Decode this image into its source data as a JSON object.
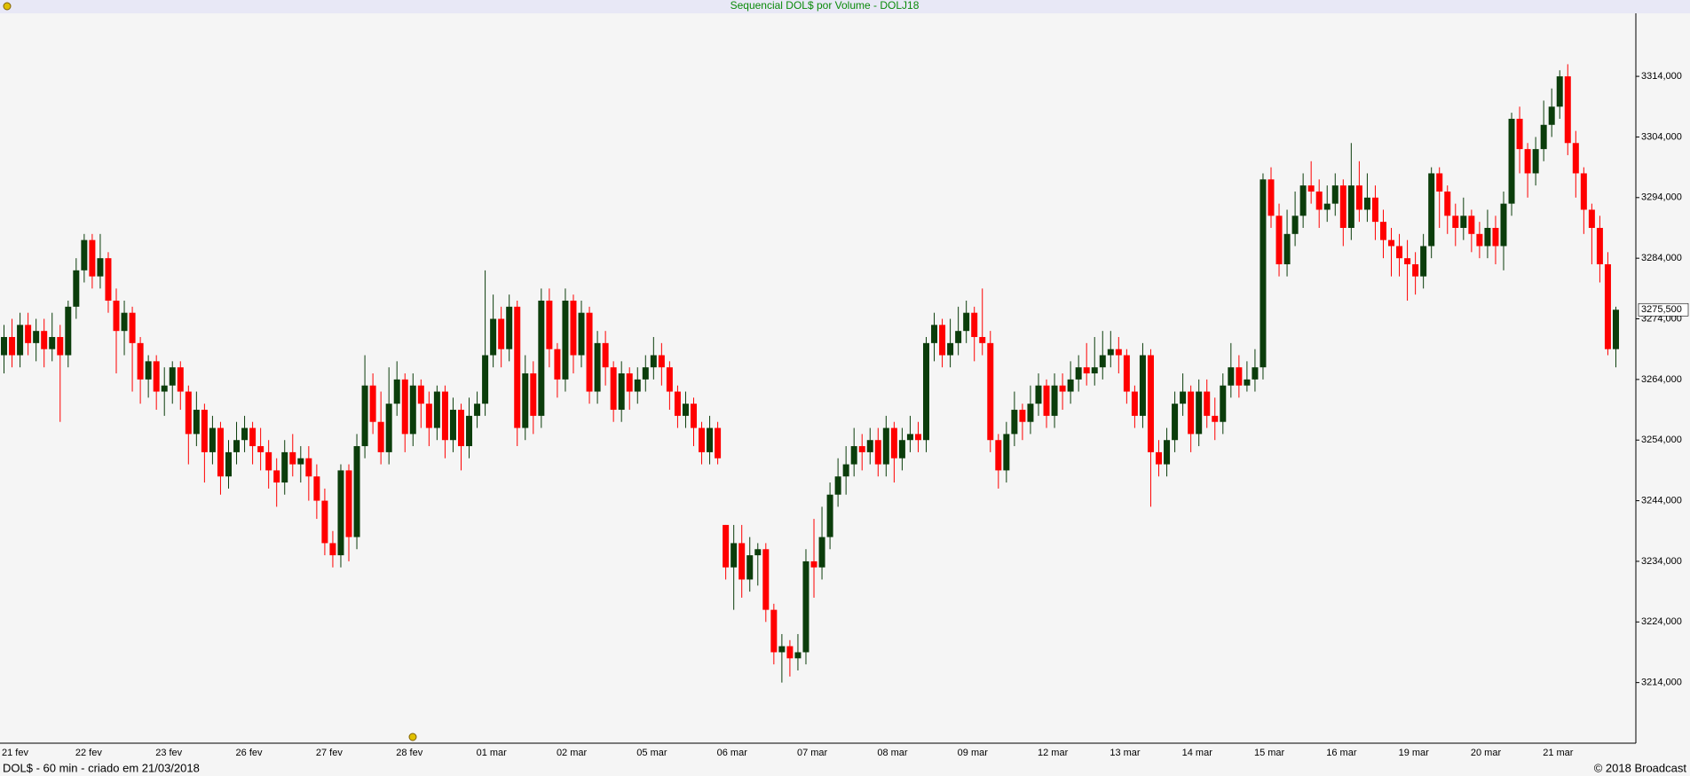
{
  "chart_data": {
    "type": "candlestick",
    "title": "Sequencial DOL$ por Volume - DOLJ18",
    "up_color": "#0b3d0b",
    "down_color": "#ff0000",
    "ylim": [
      3204,
      3324.4
    ],
    "yticks": [
      {
        "value": 3214,
        "label": "3214,000"
      },
      {
        "value": 3224,
        "label": "3224,000"
      },
      {
        "value": 3234,
        "label": "3234,000"
      },
      {
        "value": 3244,
        "label": "3244,000"
      },
      {
        "value": 3254,
        "label": "3254,000"
      },
      {
        "value": 3264,
        "label": "3264,000"
      },
      {
        "value": 3274,
        "label": "3274,000"
      },
      {
        "value": 3284,
        "label": "3284,000"
      },
      {
        "value": 3294,
        "label": "3294,000"
      },
      {
        "value": 3304,
        "label": "3304,000"
      },
      {
        "value": 3314,
        "label": "3314,000"
      }
    ],
    "price_marker": {
      "value": 3275.5,
      "label": "3275,500"
    },
    "categories": [
      "21 fev",
      null,
      null,
      null,
      null,
      null,
      null,
      null,
      null,
      null,
      "22 fev",
      null,
      null,
      null,
      null,
      null,
      null,
      null,
      null,
      null,
      "23 fev",
      null,
      null,
      null,
      null,
      null,
      null,
      null,
      null,
      null,
      "26 fev",
      null,
      null,
      null,
      null,
      null,
      null,
      null,
      null,
      null,
      "27 fev",
      null,
      null,
      null,
      null,
      null,
      null,
      null,
      null,
      null,
      "28 fev",
      null,
      null,
      null,
      null,
      null,
      null,
      null,
      null,
      null,
      "01 mar",
      null,
      null,
      null,
      null,
      null,
      null,
      null,
      null,
      null,
      "02 mar",
      null,
      null,
      null,
      null,
      null,
      null,
      null,
      null,
      null,
      "05 mar",
      null,
      null,
      null,
      null,
      null,
      null,
      null,
      null,
      null,
      "06 mar",
      null,
      null,
      null,
      null,
      null,
      null,
      null,
      null,
      null,
      "07 mar",
      null,
      null,
      null,
      null,
      null,
      null,
      null,
      null,
      null,
      "08 mar",
      null,
      null,
      null,
      null,
      null,
      null,
      null,
      null,
      null,
      "09 mar",
      null,
      null,
      null,
      null,
      null,
      null,
      null,
      null,
      null,
      "12 mar",
      null,
      null,
      null,
      null,
      null,
      null,
      null,
      null,
      "13 mar",
      null,
      null,
      null,
      null,
      null,
      null,
      null,
      null,
      "14 mar",
      null,
      null,
      null,
      null,
      null,
      null,
      null,
      null,
      "15 mar",
      null,
      null,
      null,
      null,
      null,
      null,
      null,
      null,
      "16 mar",
      null,
      null,
      null,
      null,
      null,
      null,
      null,
      null,
      "19 mar",
      null,
      null,
      null,
      null,
      null,
      null,
      null,
      null,
      "20 mar",
      null,
      null,
      null,
      null,
      null,
      null,
      null,
      null,
      "21 mar",
      null,
      null,
      null,
      null,
      null,
      null,
      null,
      null
    ],
    "ohlc": [
      [
        3268,
        3273,
        3265,
        3271
      ],
      [
        3271,
        3274,
        3266,
        3268
      ],
      [
        3268,
        3275,
        3266,
        3273
      ],
      [
        3273,
        3275,
        3268,
        3270
      ],
      [
        3270,
        3274,
        3267,
        3272
      ],
      [
        3272,
        3274,
        3266,
        3269
      ],
      [
        3269,
        3275,
        3267,
        3271
      ],
      [
        3271,
        3273,
        3257,
        3268
      ],
      [
        3268,
        3277,
        3266,
        3276
      ],
      [
        3276,
        3284,
        3274,
        3282
      ],
      [
        3282,
        3288,
        3280,
        3287
      ],
      [
        3287,
        3288,
        3279,
        3281
      ],
      [
        3281,
        3288,
        3279,
        3284
      ],
      [
        3284,
        3285,
        3275,
        3277
      ],
      [
        3277,
        3279,
        3265,
        3272
      ],
      [
        3272,
        3277,
        3268,
        3275
      ],
      [
        3275,
        3276,
        3262,
        3270
      ],
      [
        3270,
        3271,
        3260,
        3264
      ],
      [
        3264,
        3268,
        3261,
        3267
      ],
      [
        3267,
        3268,
        3259,
        3262
      ],
      [
        3262,
        3266,
        3258,
        3263
      ],
      [
        3263,
        3267,
        3260,
        3266
      ],
      [
        3266,
        3267,
        3259,
        3262
      ],
      [
        3262,
        3263,
        3250,
        3255
      ],
      [
        3255,
        3262,
        3253,
        3259
      ],
      [
        3259,
        3260,
        3247,
        3252
      ],
      [
        3252,
        3258,
        3250,
        3256
      ],
      [
        3256,
        3257,
        3245,
        3248
      ],
      [
        3248,
        3254,
        3246,
        3252
      ],
      [
        3252,
        3257,
        3250,
        3254
      ],
      [
        3254,
        3258,
        3252,
        3256
      ],
      [
        3256,
        3257,
        3250,
        3253
      ],
      [
        3253,
        3256,
        3249,
        3252
      ],
      [
        3252,
        3254,
        3246,
        3249
      ],
      [
        3249,
        3251,
        3243,
        3247
      ],
      [
        3247,
        3254,
        3245,
        3252
      ],
      [
        3252,
        3255,
        3248,
        3250
      ],
      [
        3250,
        3253,
        3247,
        3251
      ],
      [
        3251,
        3253,
        3244,
        3248
      ],
      [
        3248,
        3250,
        3241,
        3244
      ],
      [
        3244,
        3246,
        3235,
        3237
      ],
      [
        3237,
        3239,
        3233,
        3235
      ],
      [
        3235,
        3250,
        3233,
        3249
      ],
      [
        3249,
        3250,
        3234,
        3238
      ],
      [
        3238,
        3255,
        3236,
        3253
      ],
      [
        3253,
        3268,
        3251,
        3263
      ],
      [
        3263,
        3265,
        3255,
        3257
      ],
      [
        3257,
        3262,
        3250,
        3252
      ],
      [
        3252,
        3266,
        3250,
        3260
      ],
      [
        3260,
        3267,
        3258,
        3264
      ],
      [
        3264,
        3265,
        3252,
        3255
      ],
      [
        3255,
        3265,
        3253,
        3263
      ],
      [
        3263,
        3264,
        3256,
        3260
      ],
      [
        3260,
        3262,
        3253,
        3256
      ],
      [
        3256,
        3263,
        3254,
        3262
      ],
      [
        3262,
        3263,
        3251,
        3254
      ],
      [
        3254,
        3261,
        3252,
        3259
      ],
      [
        3259,
        3260,
        3249,
        3253
      ],
      [
        3253,
        3261,
        3251,
        3258
      ],
      [
        3258,
        3262,
        3256,
        3260
      ],
      [
        3260,
        3282,
        3258,
        3268
      ],
      [
        3268,
        3278,
        3266,
        3274
      ],
      [
        3274,
        3276,
        3266,
        3269
      ],
      [
        3269,
        3278,
        3267,
        3276
      ],
      [
        3276,
        3277,
        3253,
        3256
      ],
      [
        3256,
        3268,
        3254,
        3265
      ],
      [
        3265,
        3267,
        3255,
        3258
      ],
      [
        3258,
        3279,
        3256,
        3277
      ],
      [
        3277,
        3279,
        3266,
        3269
      ],
      [
        3269,
        3270,
        3261,
        3264
      ],
      [
        3264,
        3279,
        3262,
        3277
      ],
      [
        3277,
        3278,
        3265,
        3268
      ],
      [
        3268,
        3277,
        3266,
        3275
      ],
      [
        3275,
        3276,
        3260,
        3262
      ],
      [
        3262,
        3272,
        3260,
        3270
      ],
      [
        3270,
        3272,
        3263,
        3266
      ],
      [
        3266,
        3267,
        3257,
        3259
      ],
      [
        3259,
        3267,
        3257,
        3265
      ],
      [
        3265,
        3266,
        3259,
        3262
      ],
      [
        3262,
        3266,
        3260,
        3264
      ],
      [
        3264,
        3268,
        3262,
        3266
      ],
      [
        3266,
        3271,
        3264,
        3268
      ],
      [
        3268,
        3270,
        3263,
        3266
      ],
      [
        3266,
        3267,
        3259,
        3262
      ],
      [
        3262,
        3263,
        3256,
        3258
      ],
      [
        3258,
        3262,
        3256,
        3260
      ],
      [
        3260,
        3261,
        3253,
        3256
      ],
      [
        3256,
        3257,
        3250,
        3252
      ],
      [
        3252,
        3258,
        3250,
        3256
      ],
      [
        3256,
        3257,
        3250,
        3251
      ],
      [
        3240,
        3240,
        3231,
        3233
      ],
      [
        3233,
        3240,
        3226,
        3237
      ],
      [
        3237,
        3240,
        3228,
        3231
      ],
      [
        3231,
        3238,
        3229,
        3235
      ],
      [
        3235,
        3237,
        3230,
        3236
      ],
      [
        3236,
        3237,
        3224,
        3226
      ],
      [
        3226,
        3227,
        3217,
        3219
      ],
      [
        3219,
        3222,
        3214,
        3220
      ],
      [
        3220,
        3221,
        3215,
        3218
      ],
      [
        3218,
        3222,
        3216,
        3219
      ],
      [
        3219,
        3236,
        3217,
        3234
      ],
      [
        3234,
        3241,
        3228,
        3233
      ],
      [
        3233,
        3243,
        3231,
        3238
      ],
      [
        3238,
        3247,
        3236,
        3245
      ],
      [
        3245,
        3251,
        3243,
        3248
      ],
      [
        3248,
        3253,
        3245,
        3250
      ],
      [
        3250,
        3256,
        3248,
        3253
      ],
      [
        3253,
        3255,
        3249,
        3252
      ],
      [
        3252,
        3256,
        3250,
        3254
      ],
      [
        3254,
        3256,
        3248,
        3250
      ],
      [
        3250,
        3258,
        3248,
        3256
      ],
      [
        3256,
        3257,
        3247,
        3251
      ],
      [
        3251,
        3256,
        3249,
        3254
      ],
      [
        3254,
        3258,
        3252,
        3255
      ],
      [
        3255,
        3257,
        3252,
        3254
      ],
      [
        3254,
        3271,
        3252,
        3270
      ],
      [
        3270,
        3275,
        3267,
        3273
      ],
      [
        3273,
        3274,
        3266,
        3268
      ],
      [
        3268,
        3274,
        3266,
        3270
      ],
      [
        3270,
        3276,
        3268,
        3272
      ],
      [
        3272,
        3277,
        3270,
        3275
      ],
      [
        3275,
        3276,
        3267,
        3271
      ],
      [
        3271,
        3279,
        3268,
        3270
      ],
      [
        3270,
        3272,
        3252,
        3254
      ],
      [
        3254,
        3255,
        3246,
        3249
      ],
      [
        3249,
        3257,
        3247,
        3255
      ],
      [
        3255,
        3262,
        3253,
        3259
      ],
      [
        3259,
        3260,
        3254,
        3257
      ],
      [
        3257,
        3263,
        3255,
        3260
      ],
      [
        3260,
        3265,
        3258,
        3263
      ],
      [
        3263,
        3264,
        3256,
        3258
      ],
      [
        3258,
        3265,
        3256,
        3263
      ],
      [
        3263,
        3265,
        3259,
        3262
      ],
      [
        3262,
        3267,
        3260,
        3264
      ],
      [
        3264,
        3268,
        3262,
        3266
      ],
      [
        3266,
        3270,
        3263,
        3265
      ],
      [
        3265,
        3271,
        3263,
        3266
      ],
      [
        3266,
        3272,
        3264,
        3268
      ],
      [
        3268,
        3272,
        3266,
        3269
      ],
      [
        3269,
        3271,
        3265,
        3268
      ],
      [
        3268,
        3269,
        3260,
        3262
      ],
      [
        3262,
        3263,
        3256,
        3258
      ],
      [
        3258,
        3270,
        3256,
        3268
      ],
      [
        3268,
        3269,
        3243,
        3252
      ],
      [
        3252,
        3254,
        3248,
        3250
      ],
      [
        3250,
        3256,
        3248,
        3254
      ],
      [
        3254,
        3262,
        3252,
        3260
      ],
      [
        3260,
        3265,
        3258,
        3262
      ],
      [
        3262,
        3263,
        3252,
        3255
      ],
      [
        3255,
        3264,
        3253,
        3262
      ],
      [
        3262,
        3264,
        3256,
        3258
      ],
      [
        3258,
        3261,
        3254,
        3257
      ],
      [
        3257,
        3265,
        3255,
        3263
      ],
      [
        3263,
        3270,
        3261,
        3266
      ],
      [
        3266,
        3268,
        3261,
        3263
      ],
      [
        3263,
        3267,
        3262,
        3264
      ],
      [
        3264,
        3269,
        3262,
        3266
      ],
      [
        3266,
        3298,
        3264,
        3297
      ],
      [
        3297,
        3299,
        3289,
        3291
      ],
      [
        3291,
        3293,
        3281,
        3283
      ],
      [
        3283,
        3292,
        3281,
        3288
      ],
      [
        3288,
        3295,
        3286,
        3291
      ],
      [
        3291,
        3298,
        3289,
        3296
      ],
      [
        3296,
        3300,
        3293,
        3295
      ],
      [
        3295,
        3297,
        3289,
        3292
      ],
      [
        3292,
        3296,
        3290,
        3293
      ],
      [
        3293,
        3298,
        3291,
        3296
      ],
      [
        3296,
        3297,
        3286,
        3289
      ],
      [
        3289,
        3303,
        3287,
        3296
      ],
      [
        3296,
        3300,
        3290,
        3292
      ],
      [
        3292,
        3298,
        3290,
        3294
      ],
      [
        3294,
        3296,
        3287,
        3290
      ],
      [
        3290,
        3292,
        3284,
        3287
      ],
      [
        3287,
        3289,
        3281,
        3286
      ],
      [
        3286,
        3288,
        3281,
        3284
      ],
      [
        3284,
        3287,
        3277,
        3283
      ],
      [
        3283,
        3285,
        3278,
        3281
      ],
      [
        3281,
        3288,
        3279,
        3286
      ],
      [
        3286,
        3299,
        3284,
        3298
      ],
      [
        3298,
        3299,
        3289,
        3295
      ],
      [
        3295,
        3296,
        3288,
        3291
      ],
      [
        3291,
        3293,
        3286,
        3289
      ],
      [
        3289,
        3294,
        3287,
        3291
      ],
      [
        3291,
        3292,
        3285,
        3288
      ],
      [
        3288,
        3290,
        3284,
        3286
      ],
      [
        3286,
        3292,
        3284,
        3289
      ],
      [
        3289,
        3291,
        3283,
        3286
      ],
      [
        3286,
        3295,
        3282,
        3293
      ],
      [
        3293,
        3308,
        3291,
        3307
      ],
      [
        3307,
        3309,
        3298,
        3302
      ],
      [
        3302,
        3303,
        3294,
        3298
      ],
      [
        3298,
        3304,
        3296,
        3302
      ],
      [
        3302,
        3310,
        3300,
        3306
      ],
      [
        3306,
        3312,
        3304,
        3309
      ],
      [
        3309,
        3315,
        3307,
        3314
      ],
      [
        3314,
        3316,
        3301,
        3303
      ],
      [
        3303,
        3305,
        3294,
        3298
      ],
      [
        3298,
        3299,
        3288,
        3292
      ],
      [
        3292,
        3293,
        3283,
        3289
      ],
      [
        3289,
        3291,
        3280,
        3283
      ],
      [
        3283,
        3285,
        3268,
        3269
      ],
      [
        3269,
        3276,
        3266,
        3275.5
      ]
    ]
  },
  "footer": {
    "left": "DOL$ - 60 min - criado em 21/03/2018",
    "right": "© 2018 Broadcast"
  }
}
